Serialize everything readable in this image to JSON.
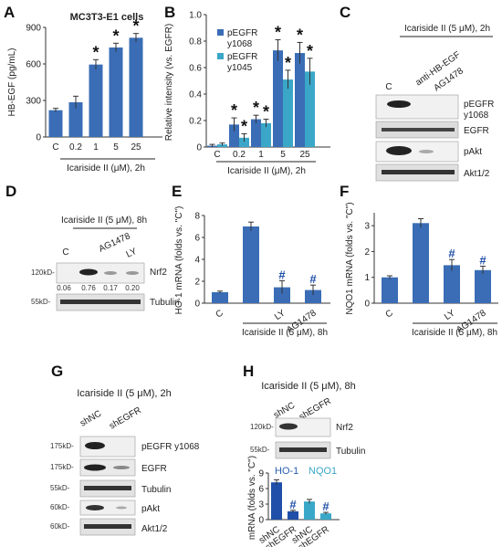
{
  "colors": {
    "dark_blue": "#3a6db5",
    "light_blue": "#3aa7c8",
    "hash_blue": "#1f4fa8"
  },
  "panels": {
    "A": {
      "letter": "A",
      "title": "MC3T3-E1 cells",
      "treatment": "Icariside II (μM), 2h"
    },
    "B": {
      "letter": "B",
      "treatment": "Icariside II (μM), 2h"
    },
    "C": {
      "letter": "C",
      "header": "Icariside II (5 μM), 2h",
      "lanes": [
        "C",
        "anti-HB-EGF",
        "AG1478"
      ],
      "rows": [
        "pEGFR",
        "y1068",
        "EGFR",
        "pAkt",
        "Akt1/2"
      ]
    },
    "D": {
      "letter": "D",
      "header": "Icariside II (5 μM), 8h",
      "lanes": [
        "C",
        "AG1478",
        "LY"
      ],
      "mw": [
        "120kD-",
        "55kD-"
      ],
      "rows": [
        "Nrf2",
        "Tubulin"
      ],
      "quant": [
        "0.06",
        "0.76",
        "0.17",
        "0.20"
      ]
    },
    "E": {
      "letter": "E",
      "treatment": "Icariside II (5 μM), 8h"
    },
    "F": {
      "letter": "F",
      "treatment": "Icariside II (5 μM), 8h"
    },
    "G": {
      "letter": "G",
      "header": "Icariside II (5 μM), 2h",
      "lanes": [
        "shNC",
        "shEGFR"
      ],
      "mw": [
        "175kD-",
        "175kD-",
        "55kD-",
        "60kD-",
        "60kD-"
      ],
      "rows": [
        "pEGFR y1068",
        "EGFR",
        "Tubulin",
        "pAkt",
        "Akt1/2"
      ]
    },
    "H": {
      "letter": "H",
      "header": "Icariside II (5 μM), 8h",
      "lanes": [
        "shNC",
        "shEGFR"
      ],
      "mw": [
        "120kD-",
        "55kD-"
      ],
      "rows": [
        "Nrf2",
        "Tubulin"
      ],
      "gene1": "HO-1",
      "gene2": "NQO1"
    }
  },
  "chart_data": [
    {
      "type": "bar",
      "panel": "A",
      "title": "MC3T3-E1 cells",
      "ylabel": "HB-EGF (pg/mL)",
      "ylim": [
        0,
        900
      ],
      "yticks": [
        "0",
        "300",
        "600",
        "900"
      ],
      "categories": [
        "C",
        "0.2",
        "1",
        "5",
        "25"
      ],
      "values": [
        220,
        285,
        595,
        735,
        815
      ],
      "errors": [
        15,
        50,
        40,
        35,
        35
      ],
      "marks": [
        "",
        "",
        "*",
        "*",
        "*"
      ]
    },
    {
      "type": "bar",
      "panel": "B",
      "ylabel": "Relative intensity (vs. EGFR)",
      "ylim": [
        0,
        1.0
      ],
      "yticks": [
        "0",
        "0.2",
        "0.4",
        "0.6",
        "0.8",
        "1.0"
      ],
      "categories": [
        "C",
        "0.2",
        "1",
        "5",
        "25"
      ],
      "series": [
        {
          "name": "pEGFR y1068",
          "values": [
            0.01,
            0.17,
            0.21,
            0.73,
            0.71
          ],
          "errors": [
            0.01,
            0.05,
            0.03,
            0.08,
            0.08
          ],
          "marks": [
            "",
            "*",
            "*",
            "*",
            "*"
          ]
        },
        {
          "name": "pEGFR y1045",
          "values": [
            0.02,
            0.07,
            0.18,
            0.51,
            0.57
          ],
          "errors": [
            0.01,
            0.03,
            0.03,
            0.07,
            0.1
          ],
          "marks": [
            "",
            "*",
            "*",
            "*",
            "*"
          ]
        }
      ],
      "legend": [
        "pEGFR",
        "y1068",
        "pEGFR",
        "y1045"
      ]
    },
    {
      "type": "bar",
      "panel": "E",
      "ylabel": "HO-1 mRNA (folds vs. \"C\")",
      "ylim": [
        0,
        8
      ],
      "yticks": [
        "0",
        "2",
        "4",
        "6",
        "8"
      ],
      "categories": [
        "C",
        "",
        "LY",
        "AG1478"
      ],
      "values": [
        1.0,
        7.0,
        1.45,
        1.2
      ],
      "errors": [
        0.1,
        0.4,
        0.6,
        0.45
      ],
      "marks": [
        "",
        "",
        "#",
        "#"
      ]
    },
    {
      "type": "bar",
      "panel": "F",
      "ylabel": "NQO1 mRNA (folds vs. \"C\")",
      "ylim": [
        0,
        3.5
      ],
      "yticks": [
        "0",
        "1",
        "2",
        "3"
      ],
      "categories": [
        "C",
        "",
        "LY",
        "AG1478"
      ],
      "values": [
        1.0,
        3.1,
        1.47,
        1.28
      ],
      "errors": [
        0.06,
        0.17,
        0.22,
        0.15
      ],
      "marks": [
        "",
        "",
        "#",
        "#"
      ]
    },
    {
      "type": "bar",
      "panel": "H",
      "ylabel": "mRNA (folds vs. \"C\")",
      "ylim": [
        0,
        9
      ],
      "yticks": [
        "0",
        "3",
        "6",
        "9"
      ],
      "categories": [
        "shNC",
        "shEGFR",
        "shNC",
        "shEGFR"
      ],
      "values": [
        7.2,
        1.6,
        3.5,
        1.2
      ],
      "errors": [
        0.5,
        0.2,
        0.4,
        0.2
      ],
      "marks": [
        "",
        "#",
        "",
        "#"
      ]
    }
  ]
}
